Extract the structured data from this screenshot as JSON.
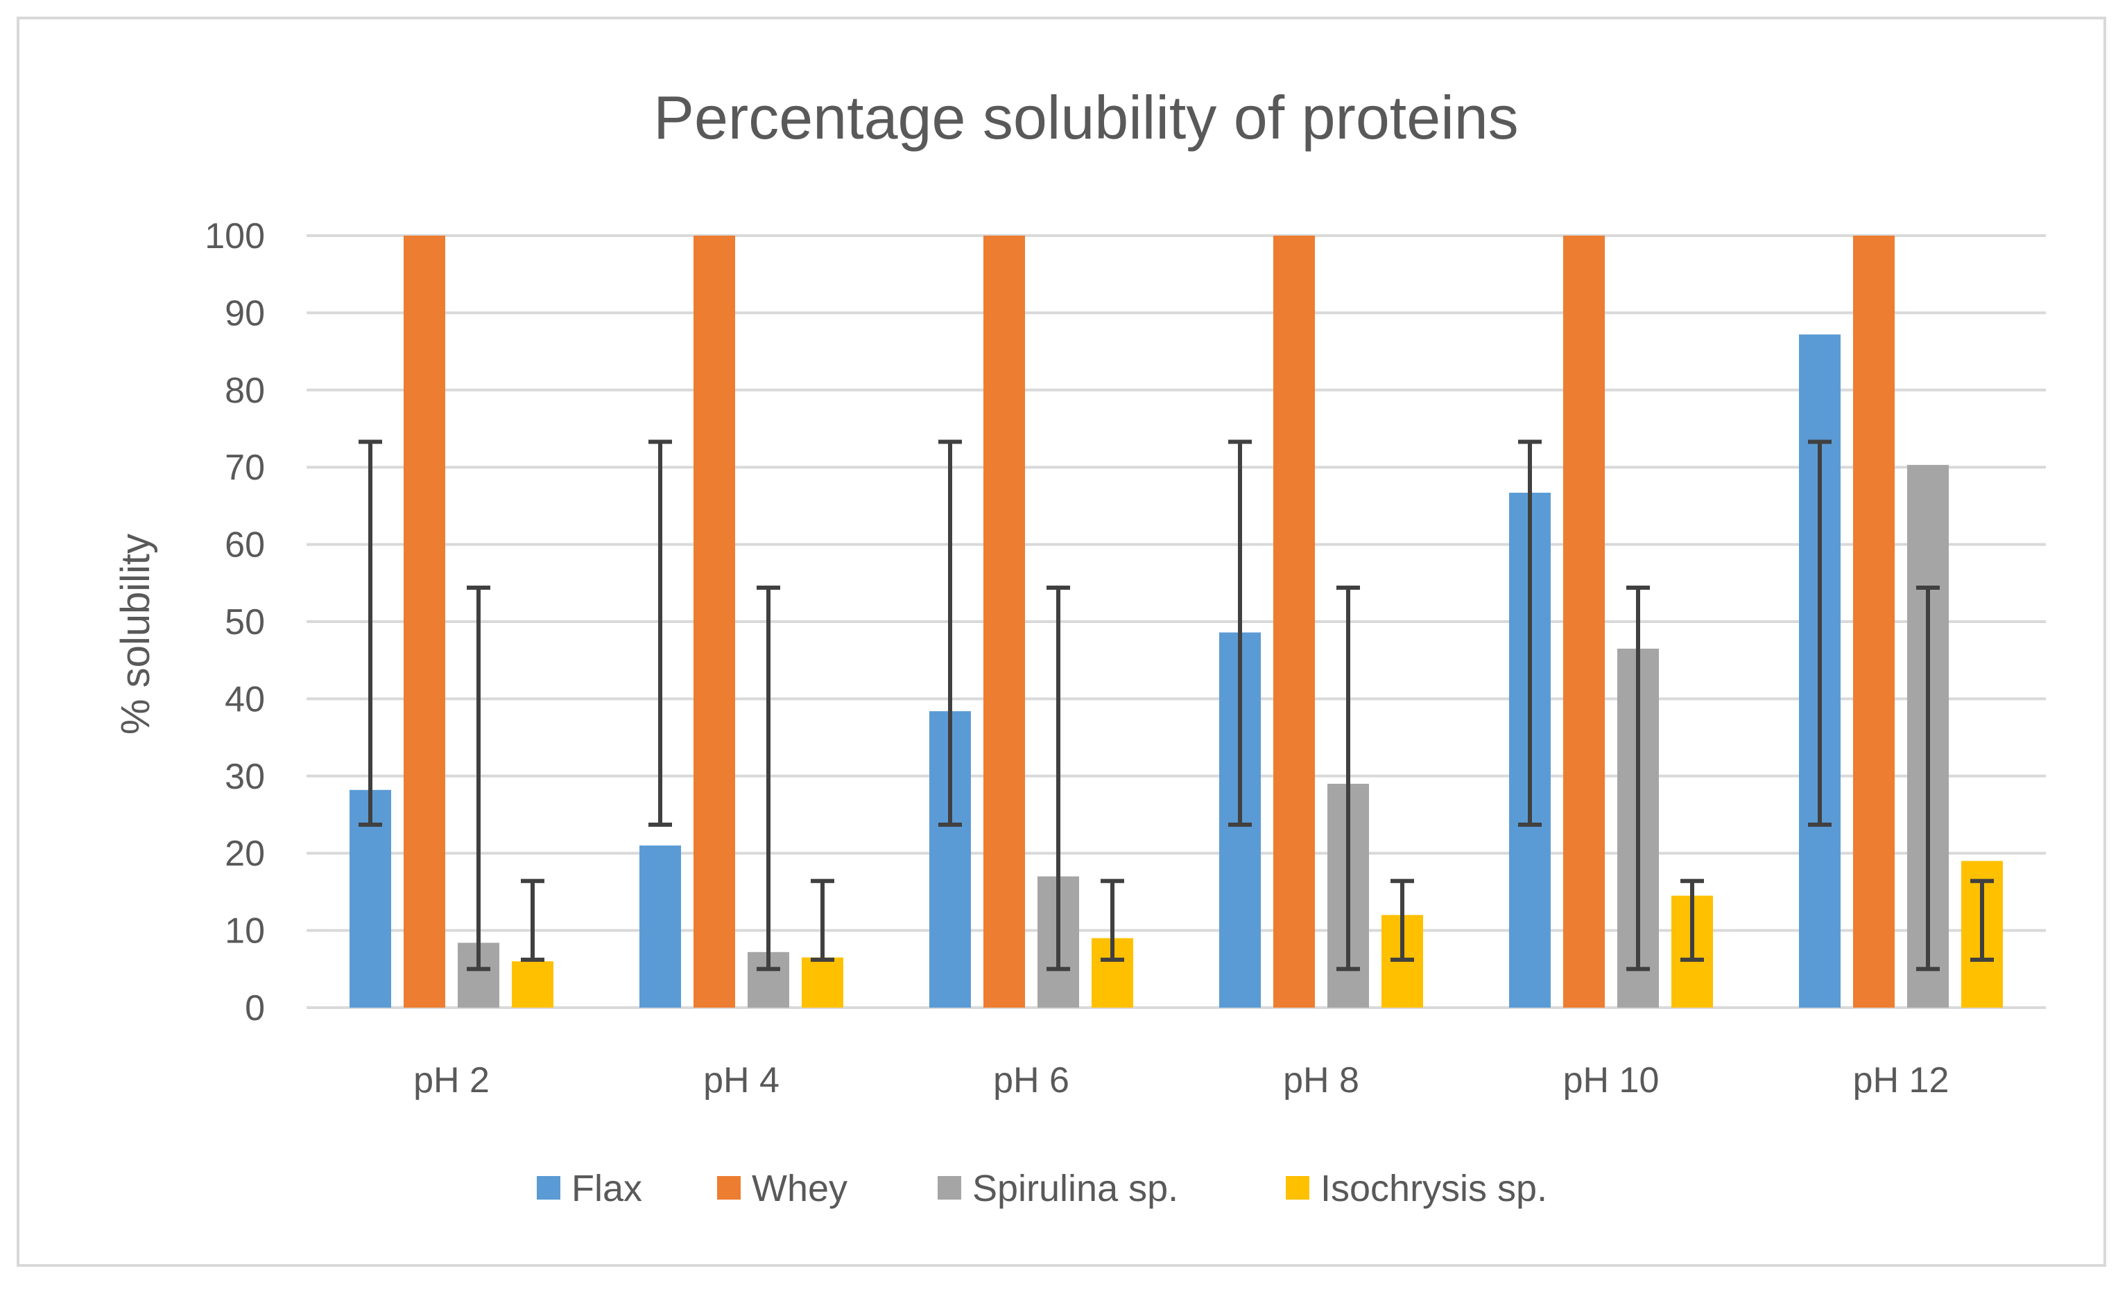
{
  "chart_data": {
    "type": "bar",
    "title": "Percentage solubility of proteins",
    "xlabel": "",
    "ylabel": "% solubility",
    "ylim": [
      0,
      100
    ],
    "yticks": [
      0,
      10,
      20,
      30,
      40,
      50,
      60,
      70,
      80,
      90,
      100
    ],
    "grid": true,
    "legend_position": "bottom",
    "categories": [
      "pH 2",
      "pH 4",
      "pH 6",
      "pH 8",
      "pH 10",
      "pH 12"
    ],
    "series": [
      {
        "name": "Flax",
        "color": "#5b9bd5",
        "values": [
          28.2,
          21.0,
          38.4,
          48.6,
          66.7,
          87.2
        ],
        "error_low": 23.7,
        "error_high": 73.3
      },
      {
        "name": "Whey",
        "color": "#ed7d31",
        "values": [
          100,
          100,
          100,
          100,
          100,
          100
        ]
      },
      {
        "name": "Spirulina sp.",
        "color": "#a5a5a5",
        "values": [
          8.4,
          7.2,
          17.0,
          29.0,
          46.5,
          70.3
        ],
        "error_low": 5.0,
        "error_high": 54.4
      },
      {
        "name": "Isochrysis sp.",
        "color": "#ffc000",
        "values": [
          6.0,
          6.5,
          9.0,
          12.0,
          14.5,
          19.0
        ],
        "error_low": 6.2,
        "error_high": 16.4
      }
    ]
  }
}
